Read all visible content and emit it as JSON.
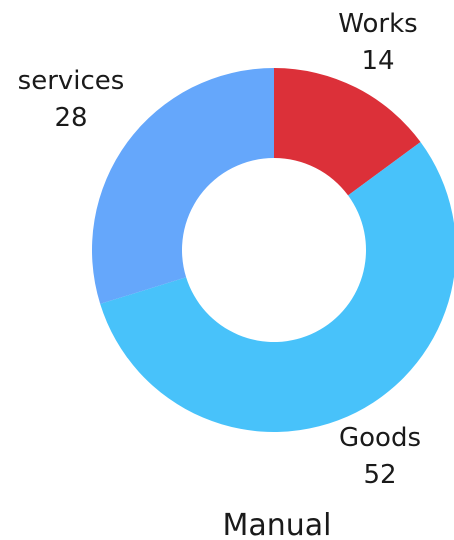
{
  "chart_data": {
    "type": "pie",
    "variant": "donut",
    "title": "Manual",
    "legend": "none",
    "categories": [
      "Works",
      "Goods",
      "services"
    ],
    "values": [
      14,
      52,
      28
    ],
    "colors": [
      "#dc3039",
      "#48c2fa",
      "#65a7fb"
    ],
    "labels": [
      {
        "name": "Works",
        "value": "14"
      },
      {
        "name": "Goods",
        "value": "52"
      },
      {
        "name": "services",
        "value": "28"
      }
    ]
  }
}
